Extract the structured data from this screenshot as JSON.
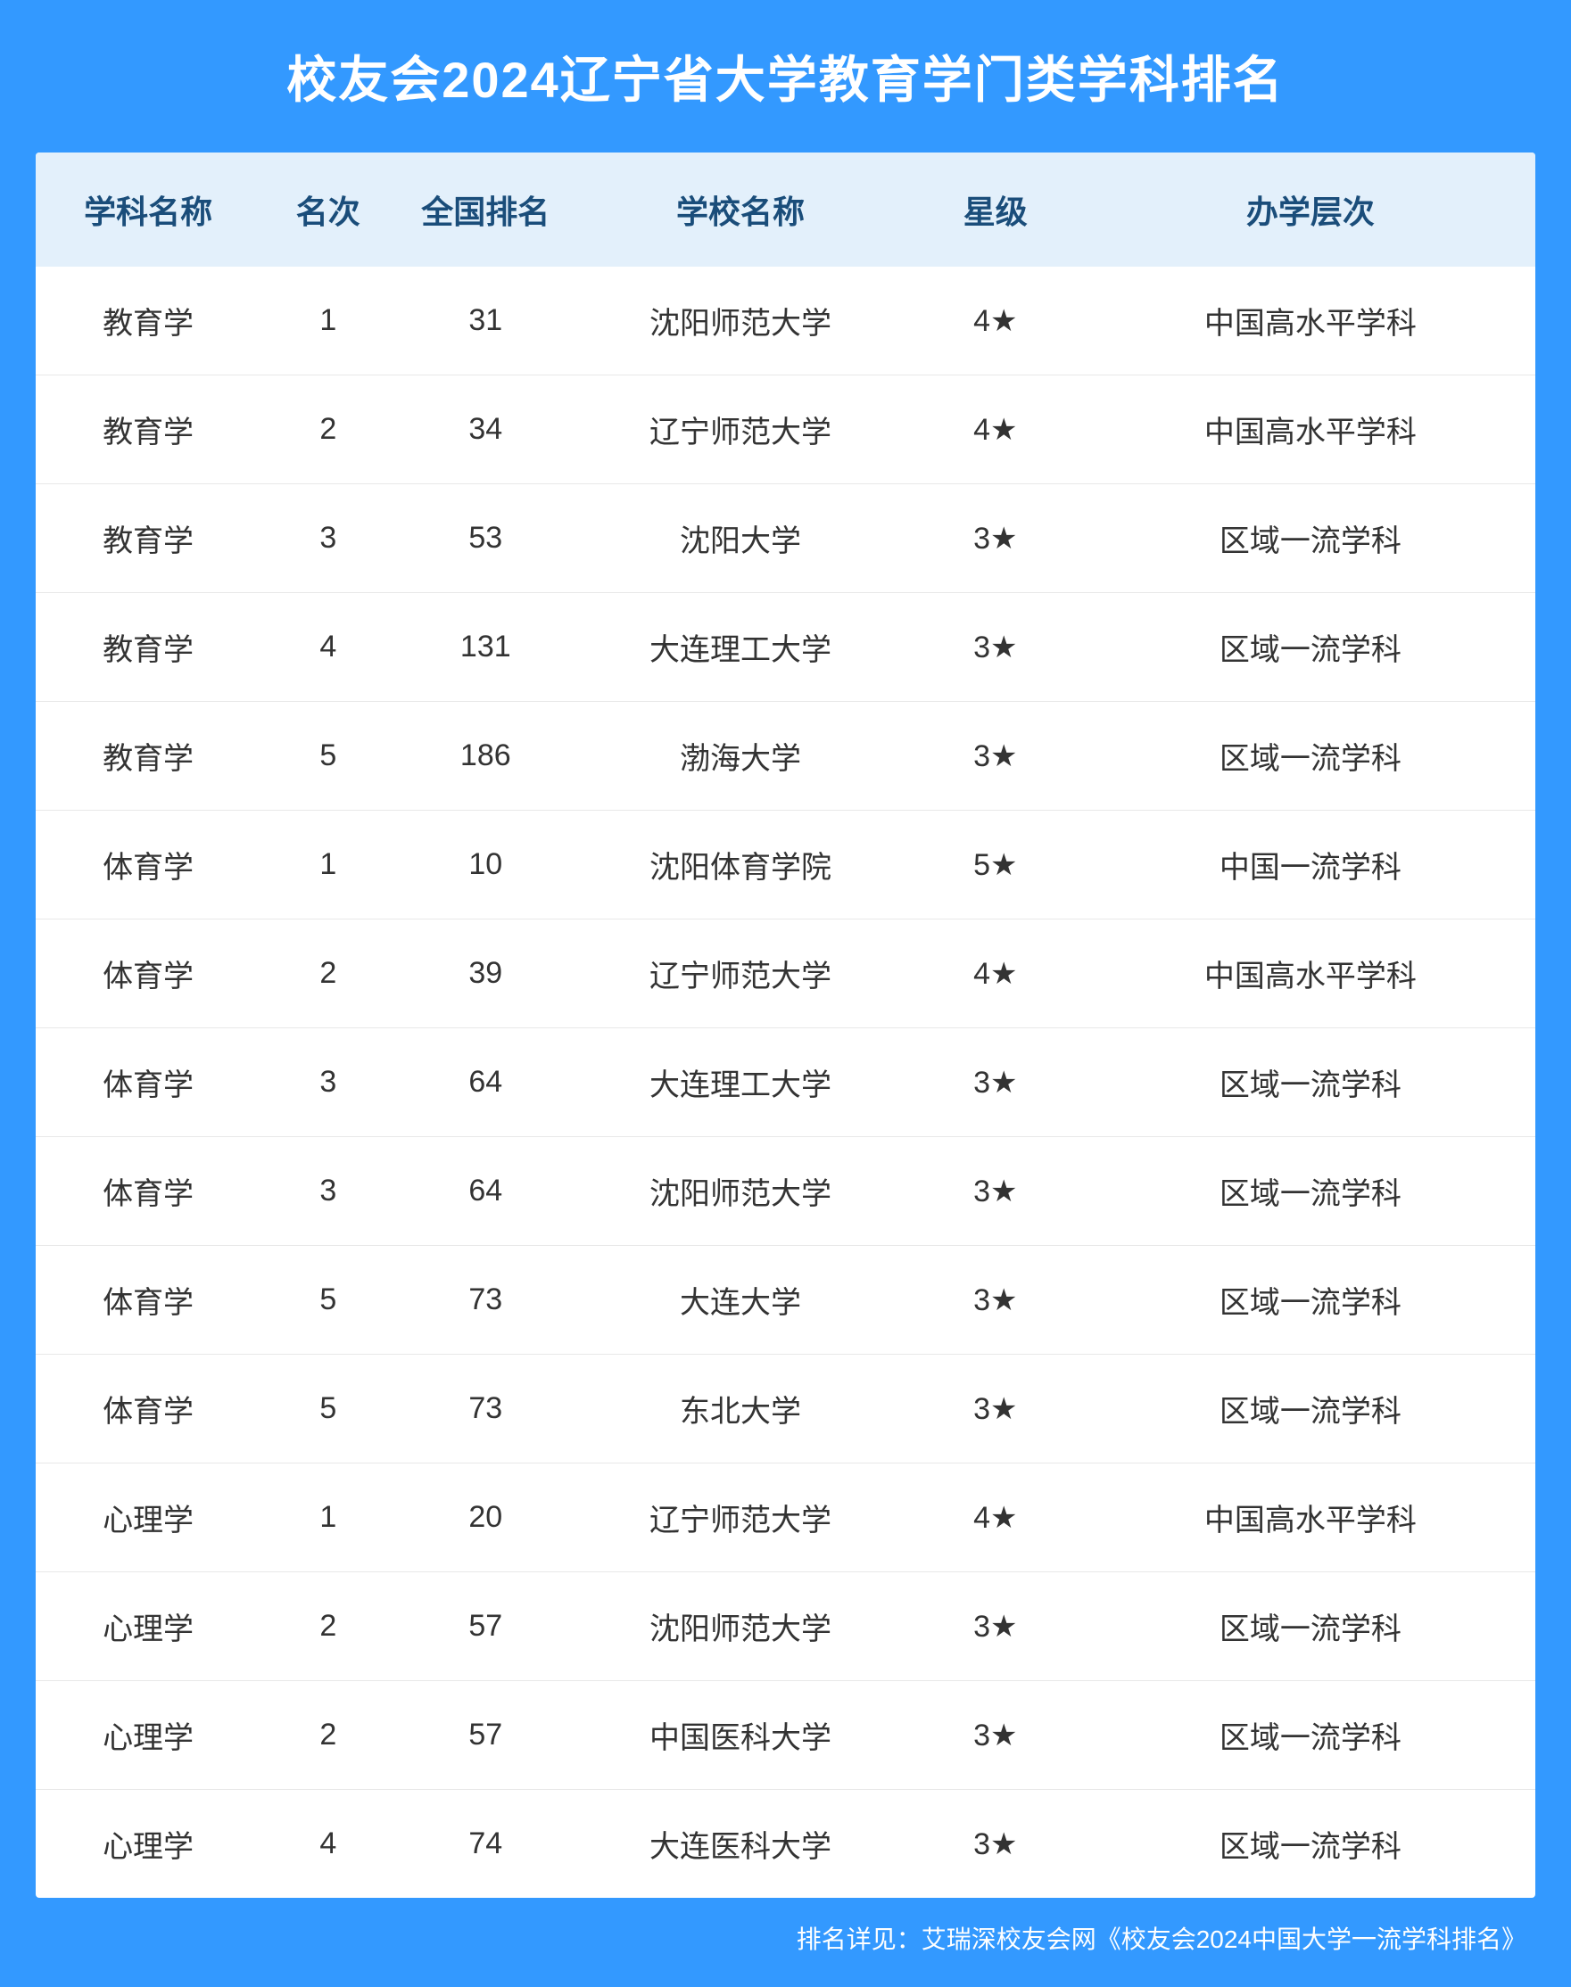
{
  "title": "校友会2024辽宁省大学教育学门类学科排名",
  "colors": {
    "background": "#3399ff",
    "title_text": "#ffffff",
    "header_bg": "#e3f0fb",
    "header_text": "#1a4d7a",
    "cell_text": "#333333",
    "border": "#e8e8e8",
    "footer_text": "#ffffff"
  },
  "columns": [
    "学科名称",
    "名次",
    "全国排名",
    "学校名称",
    "星级",
    "办学层次"
  ],
  "rows": [
    [
      "教育学",
      "1",
      "31",
      "沈阳师范大学",
      "4★",
      "中国高水平学科"
    ],
    [
      "教育学",
      "2",
      "34",
      "辽宁师范大学",
      "4★",
      "中国高水平学科"
    ],
    [
      "教育学",
      "3",
      "53",
      "沈阳大学",
      "3★",
      "区域一流学科"
    ],
    [
      "教育学",
      "4",
      "131",
      "大连理工大学",
      "3★",
      "区域一流学科"
    ],
    [
      "教育学",
      "5",
      "186",
      "渤海大学",
      "3★",
      "区域一流学科"
    ],
    [
      "体育学",
      "1",
      "10",
      "沈阳体育学院",
      "5★",
      "中国一流学科"
    ],
    [
      "体育学",
      "2",
      "39",
      "辽宁师范大学",
      "4★",
      "中国高水平学科"
    ],
    [
      "体育学",
      "3",
      "64",
      "大连理工大学",
      "3★",
      "区域一流学科"
    ],
    [
      "体育学",
      "3",
      "64",
      "沈阳师范大学",
      "3★",
      "区域一流学科"
    ],
    [
      "体育学",
      "5",
      "73",
      "大连大学",
      "3★",
      "区域一流学科"
    ],
    [
      "体育学",
      "5",
      "73",
      "东北大学",
      "3★",
      "区域一流学科"
    ],
    [
      "心理学",
      "1",
      "20",
      "辽宁师范大学",
      "4★",
      "中国高水平学科"
    ],
    [
      "心理学",
      "2",
      "57",
      "沈阳师范大学",
      "3★",
      "区域一流学科"
    ],
    [
      "心理学",
      "2",
      "57",
      "中国医科大学",
      "3★",
      "区域一流学科"
    ],
    [
      "心理学",
      "4",
      "74",
      "大连医科大学",
      "3★",
      "区域一流学科"
    ]
  ],
  "footer": "排名详见：艾瑞深校友会网《校友会2024中国大学一流学科排名》"
}
